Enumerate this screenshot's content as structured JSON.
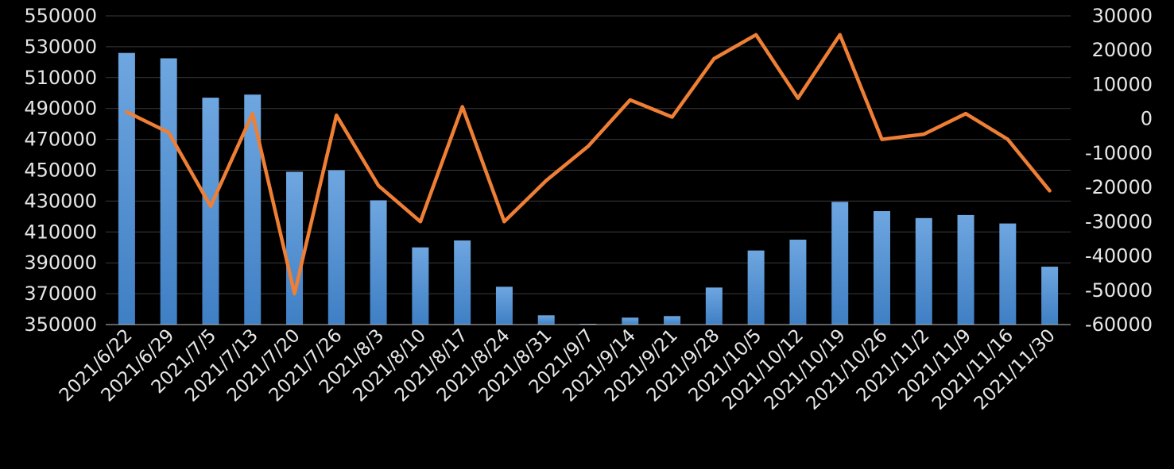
{
  "chart_data": {
    "type": "bar+line",
    "title": "",
    "xlabel": "",
    "ylabel": "",
    "y2label": "",
    "categories": [
      "2021/6/22",
      "2021/6/29",
      "2021/7/5",
      "2021/7/13",
      "2021/7/20",
      "2021/7/26",
      "2021/8/3",
      "2021/8/10",
      "2021/8/17",
      "2021/8/24",
      "2021/8/31",
      "2021/9/7",
      "2021/9/14",
      "2021/9/21",
      "2021/9/28",
      "2021/10/5",
      "2021/10/12",
      "2021/10/19",
      "2021/10/26",
      "2021/11/2",
      "2021/11/9",
      "2021/11/16",
      "2021/11/30"
    ],
    "ylim": [
      350000,
      550000
    ],
    "y_ticks": [
      "550000",
      "530000",
      "510000",
      "490000",
      "470000",
      "450000",
      "430000",
      "410000",
      "390000",
      "370000",
      "350000"
    ],
    "y2lim": [
      -60000,
      30000
    ],
    "y2_ticks": [
      "30000",
      "20000",
      "10000",
      "0",
      "-10000",
      "-20000",
      "-30000",
      "-40000",
      "-50000",
      "-60000"
    ],
    "grid": true,
    "series": [
      {
        "type": "bar",
        "axis": "left",
        "values": [
          526000,
          522500,
          497000,
          499000,
          449000,
          450000,
          430500,
          400000,
          404500,
          374500,
          356000,
          350500,
          354500,
          355500,
          374000,
          398000,
          405000,
          429500,
          423500,
          419000,
          421000,
          415500,
          387500
        ]
      },
      {
        "type": "line",
        "axis": "right",
        "values": [
          2000,
          -4000,
          -25500,
          1500,
          -51000,
          1000,
          -19500,
          -30000,
          3500,
          -30000,
          -18000,
          -8000,
          5500,
          500,
          17500,
          24500,
          6000,
          24500,
          -6000,
          -4500,
          1500,
          -6000,
          -21000
        ]
      }
    ],
    "colors": {
      "background": "#000000",
      "bar_top": "#6ea6e0",
      "bar_bottom": "#3f7fc4",
      "line": "#ee7f35",
      "text": "#e6e6e6",
      "grid": "#3a3a3a"
    }
  }
}
